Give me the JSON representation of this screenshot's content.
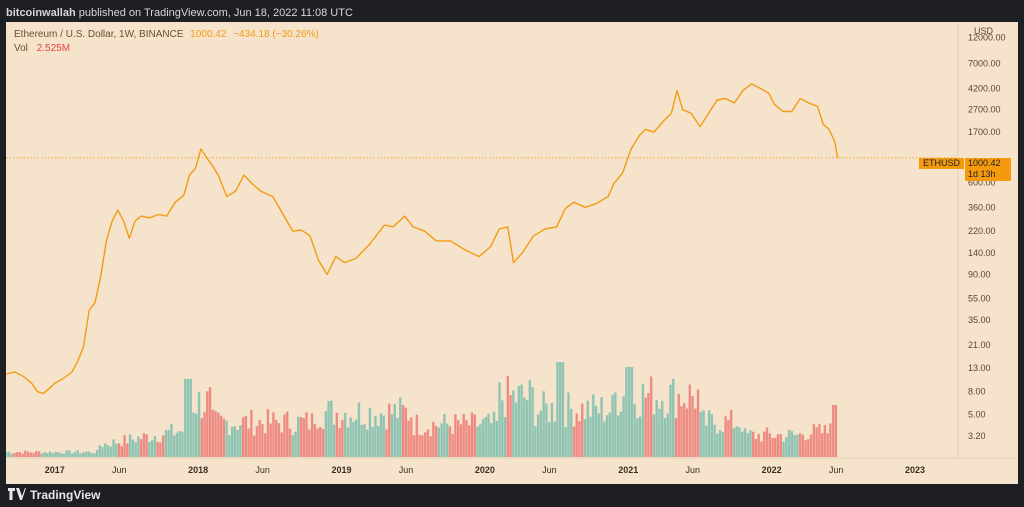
{
  "header": {
    "author": "bitcoinwallah",
    "published_text": "published on TradingView.com, Jun 18, 2022 11:08 UTC"
  },
  "legend": {
    "symbol": "Ethereum / U.S. Dollar, 1W, BINANCE",
    "last": "1000.42",
    "change": "−434.18 (−30.26%)",
    "vol_label": "Vol",
    "vol_value": "2.525M"
  },
  "price_tag": {
    "symbol": "ETHUSD",
    "price": "1000.42",
    "countdown": "1d 13h"
  },
  "footer": {
    "brand": "TradingView"
  },
  "colors": {
    "background": "#f5e3cc",
    "line": "#f39c12",
    "vol_up": "#8fc4b3",
    "vol_down": "#ee8c83",
    "dark": "#1e1f23"
  },
  "chart_data": {
    "type": "line",
    "title": "Ethereum / U.S. Dollar, 1W, BINANCE",
    "xlabel": "",
    "ylabel": "USD",
    "y_scale": "log",
    "ylim": [
      2.4,
      14000
    ],
    "y_ticks": [
      12000,
      7000,
      4200,
      2700,
      1700,
      600,
      360,
      220,
      140,
      90,
      55,
      35,
      21,
      13,
      8,
      5,
      3.2
    ],
    "y_tick_labels": [
      "USD",
      "12000.00",
      "7000.00",
      "4200.00",
      "2700.00",
      "1700.00",
      "600.00",
      "360.00",
      "220.00",
      "140.00",
      "90.00",
      "55.00",
      "35.00",
      "21.00",
      "13.00",
      "8.00",
      "5.00",
      "3.20"
    ],
    "x_ticks": [
      {
        "t": 2017.0,
        "label": "2017",
        "bold": true
      },
      {
        "t": 2017.45,
        "label": "Jun",
        "bold": false
      },
      {
        "t": 2018.0,
        "label": "2018",
        "bold": true
      },
      {
        "t": 2018.45,
        "label": "Jun",
        "bold": false
      },
      {
        "t": 2019.0,
        "label": "2019",
        "bold": true
      },
      {
        "t": 2019.45,
        "label": "Jun",
        "bold": false
      },
      {
        "t": 2020.0,
        "label": "2020",
        "bold": true
      },
      {
        "t": 2020.45,
        "label": "Jun",
        "bold": false
      },
      {
        "t": 2021.0,
        "label": "2021",
        "bold": true
      },
      {
        "t": 2021.45,
        "label": "Jun",
        "bold": false
      },
      {
        "t": 2022.0,
        "label": "2022",
        "bold": true
      },
      {
        "t": 2022.45,
        "label": "Jun",
        "bold": false
      },
      {
        "t": 2023.0,
        "label": "2023",
        "bold": true
      }
    ],
    "xlim": [
      2016.66,
      2023.3
    ],
    "current_price": 1000.42,
    "series": [
      {
        "name": "ETHUSD",
        "points": [
          [
            2016.66,
            11.5
          ],
          [
            2016.72,
            12.0
          ],
          [
            2016.78,
            11.0
          ],
          [
            2016.84,
            9.5
          ],
          [
            2016.88,
            8.0
          ],
          [
            2016.92,
            7.7
          ],
          [
            2016.96,
            8.5
          ],
          [
            2017.0,
            9.5
          ],
          [
            2017.06,
            10.5
          ],
          [
            2017.12,
            12.0
          ],
          [
            2017.16,
            15.0
          ],
          [
            2017.2,
            20.0
          ],
          [
            2017.24,
            43.0
          ],
          [
            2017.28,
            50.0
          ],
          [
            2017.32,
            85.0
          ],
          [
            2017.36,
            180.0
          ],
          [
            2017.4,
            270.0
          ],
          [
            2017.44,
            340.0
          ],
          [
            2017.48,
            270.0
          ],
          [
            2017.52,
            190.0
          ],
          [
            2017.56,
            270.0
          ],
          [
            2017.6,
            300.0
          ],
          [
            2017.66,
            290.0
          ],
          [
            2017.72,
            310.0
          ],
          [
            2017.78,
            300.0
          ],
          [
            2017.84,
            400.0
          ],
          [
            2017.9,
            460.0
          ],
          [
            2017.94,
            700.0
          ],
          [
            2017.98,
            800.0
          ],
          [
            2018.02,
            1200.0
          ],
          [
            2018.06,
            1000.0
          ],
          [
            2018.1,
            850.0
          ],
          [
            2018.14,
            700.0
          ],
          [
            2018.2,
            450.0
          ],
          [
            2018.26,
            500.0
          ],
          [
            2018.32,
            700.0
          ],
          [
            2018.38,
            580.0
          ],
          [
            2018.44,
            500.0
          ],
          [
            2018.52,
            450.0
          ],
          [
            2018.6,
            300.0
          ],
          [
            2018.66,
            220.0
          ],
          [
            2018.72,
            225.0
          ],
          [
            2018.78,
            200.0
          ],
          [
            2018.84,
            120.0
          ],
          [
            2018.9,
            90.0
          ],
          [
            2018.96,
            130.0
          ],
          [
            2019.02,
            115.0
          ],
          [
            2019.1,
            125.0
          ],
          [
            2019.2,
            170.0
          ],
          [
            2019.3,
            250.0
          ],
          [
            2019.36,
            240.0
          ],
          [
            2019.44,
            300.0
          ],
          [
            2019.5,
            240.0
          ],
          [
            2019.58,
            220.0
          ],
          [
            2019.66,
            180.0
          ],
          [
            2019.76,
            180.0
          ],
          [
            2019.86,
            150.0
          ],
          [
            2019.96,
            130.0
          ],
          [
            2020.04,
            160.0
          ],
          [
            2020.1,
            230.0
          ],
          [
            2020.16,
            240.0
          ],
          [
            2020.2,
            115.0
          ],
          [
            2020.26,
            140.0
          ],
          [
            2020.34,
            200.0
          ],
          [
            2020.42,
            230.0
          ],
          [
            2020.5,
            240.0
          ],
          [
            2020.56,
            350.0
          ],
          [
            2020.62,
            400.0
          ],
          [
            2020.7,
            360.0
          ],
          [
            2020.78,
            390.0
          ],
          [
            2020.86,
            450.0
          ],
          [
            2020.9,
            590.0
          ],
          [
            2020.96,
            730.0
          ],
          [
            2021.02,
            1200.0
          ],
          [
            2021.08,
            1600.0
          ],
          [
            2021.12,
            1800.0
          ],
          [
            2021.18,
            1700.0
          ],
          [
            2021.24,
            2100.0
          ],
          [
            2021.3,
            2500.0
          ],
          [
            2021.34,
            4000.0
          ],
          [
            2021.38,
            2700.0
          ],
          [
            2021.44,
            2500.0
          ],
          [
            2021.5,
            1900.0
          ],
          [
            2021.56,
            2500.0
          ],
          [
            2021.62,
            3300.0
          ],
          [
            2021.68,
            3400.0
          ],
          [
            2021.74,
            3100.0
          ],
          [
            2021.8,
            4000.0
          ],
          [
            2021.86,
            4600.0
          ],
          [
            2021.92,
            4200.0
          ],
          [
            2021.98,
            3800.0
          ],
          [
            2022.02,
            3000.0
          ],
          [
            2022.08,
            2600.0
          ],
          [
            2022.14,
            2600.0
          ],
          [
            2022.2,
            3400.0
          ],
          [
            2022.26,
            3100.0
          ],
          [
            2022.32,
            2900.0
          ],
          [
            2022.36,
            2000.0
          ],
          [
            2022.4,
            1800.0
          ],
          [
            2022.44,
            1400.0
          ],
          [
            2022.46,
            1000.42
          ]
        ]
      }
    ],
    "volume": {
      "label": "Vol",
      "last": "2.525M",
      "note": "weekly volume bars, relative heights"
    }
  }
}
